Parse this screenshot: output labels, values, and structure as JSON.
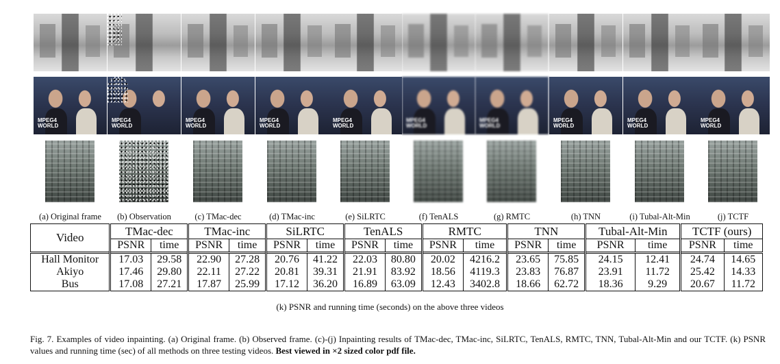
{
  "subcaptions": [
    "(a) Original frame",
    "(b) Observation",
    "(c) TMac-dec",
    "(d) TMac-inc",
    "(e) SiLRTC",
    "(f) TenALS",
    "(g) RMTC",
    "(h) TNN",
    "(i) Tubal-Alt-Min",
    "(j) TCTF"
  ],
  "thumbnail_text": {
    "akiyo_logo": "MPEG4\nWORLD"
  },
  "table": {
    "video_header": "Video",
    "methods": [
      "TMac-dec",
      "TMac-inc",
      "SiLRTC",
      "TenALS",
      "RMTC",
      "TNN",
      "Tubal-Alt-Min",
      "TCTF (ours)"
    ],
    "psnr_label": "PSNR",
    "time_label": "time",
    "rows": [
      {
        "video": "Hall Monitor",
        "values": [
          "17.03",
          "29.58",
          "22.90",
          "27.28",
          "20.76",
          "41.22",
          "22.03",
          "80.80",
          "20.02",
          "4216.2",
          "23.65",
          "75.85",
          "24.15",
          "12.41",
          "24.74",
          "14.65"
        ]
      },
      {
        "video": "Akiyo",
        "values": [
          "17.46",
          "29.80",
          "22.11",
          "27.22",
          "20.81",
          "39.31",
          "21.91",
          "83.92",
          "18.56",
          "4119.3",
          "23.83",
          "76.87",
          "23.91",
          "11.72",
          "25.42",
          "14.33"
        ]
      },
      {
        "video": "Bus",
        "values": [
          "17.08",
          "27.21",
          "17.87",
          "25.99",
          "17.12",
          "36.20",
          "16.89",
          "63.09",
          "12.43",
          "3402.8",
          "18.66",
          "62.72",
          "18.36",
          "9.29",
          "20.67",
          "11.72"
        ]
      }
    ],
    "caption": "(k) PSNR and running time (seconds) on the above three videos"
  },
  "figure_caption": {
    "text": "Fig. 7.  Examples of video inpainting. (a) Original frame. (b) Observed frame. (c)-(j) Inpainting results of TMac-dec, TMac-inc, SiLRTC, TenALS, RMTC, TNN, Tubal-Alt-Min and our TCTF. (k) PSNR values and running time (sec) of all methods on three testing videos. ",
    "bold_text": "Best viewed in ×2 sized color pdf file."
  }
}
